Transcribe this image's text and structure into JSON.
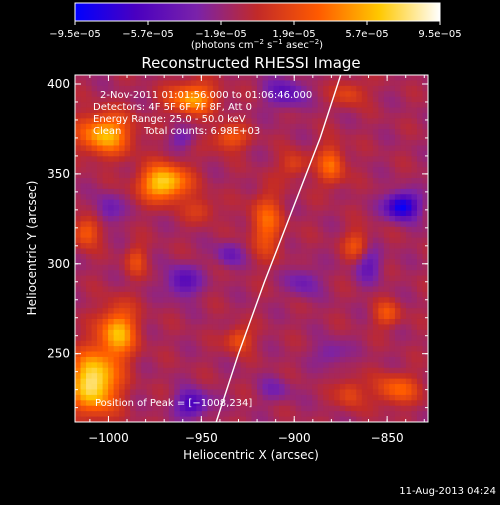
{
  "chart_data": {
    "type": "heatmap",
    "title": "Reconstructed RHESSI Image",
    "xlabel": "Heliocentric X (arcsec)",
    "ylabel": "Heliocentric Y (arcsec)",
    "xlim": [
      -1018,
      -828
    ],
    "ylim": [
      212,
      405
    ],
    "x_ticks": [
      -1000,
      -950,
      -900,
      -850
    ],
    "x_tick_labels": [
      "−1000",
      "−950",
      "−900",
      "−850"
    ],
    "y_ticks": [
      250,
      300,
      350,
      400
    ],
    "y_tick_labels": [
      "250",
      "300",
      "350",
      "400"
    ],
    "colorbar": {
      "range": [
        -9.5e-05,
        9.5e-05
      ],
      "ticks": [
        -9.5e-05,
        -5.7e-05,
        -1.9e-05,
        1.9e-05,
        5.7e-05,
        9.5e-05
      ],
      "tick_labels": [
        "−9.5e−05",
        "−5.7e−05",
        "−1.9e−05",
        "1.9e−05",
        "5.7e−05",
        "9.5e−05"
      ],
      "units_text": "(photons cm",
      "units_exp1": "−2",
      "units_mid": " s",
      "units_exp2": "−1",
      "units_mid2": " asec",
      "units_exp3": "−2",
      "units_end": ")",
      "stops": [
        "#0000ff",
        "#4a00c0",
        "#7a22aa",
        "#c22a28",
        "#ff5a00",
        "#ffc800",
        "#ffffff"
      ]
    },
    "annotations": {
      "time_range": "2-Nov-2011 01:01:56.000 to 01:06:46.000",
      "detectors": "Detectors: 4F 5F 6F 7F 8F, Att 0",
      "energy": "Energy Range: 25.0 - 50.0 keV",
      "method": "Clean",
      "counts": "Total counts: 6.98E+03",
      "peak": "Position of Peak = [−1008,234]"
    },
    "peak": [
      -1008,
      234
    ],
    "limb_curve": [
      [
        -942,
        212
      ],
      [
        -930,
        250
      ],
      [
        -916,
        290
      ],
      [
        -901,
        330
      ],
      [
        -886,
        370
      ],
      [
        -875,
        405
      ]
    ],
    "sources": [
      {
        "x": -1008,
        "y": 234,
        "sx": 9,
        "sy": 12,
        "a": 9.5e-05
      },
      {
        "x": -995,
        "y": 262,
        "sx": 7,
        "sy": 10,
        "a": 7e-05
      },
      {
        "x": -970,
        "y": 345,
        "sx": 9,
        "sy": 7,
        "a": 8.5e-05
      },
      {
        "x": -1002,
        "y": 372,
        "sx": 10,
        "sy": 8,
        "a": 7.2e-05
      },
      {
        "x": -955,
        "y": 392,
        "sx": 9,
        "sy": 6,
        "a": 6.5e-05
      },
      {
        "x": -1012,
        "y": 318,
        "sx": 5,
        "sy": 6,
        "a": 4.5e-05
      },
      {
        "x": -935,
        "y": 370,
        "sx": 7,
        "sy": 5,
        "a": 4e-05
      },
      {
        "x": -915,
        "y": 322,
        "sx": 6,
        "sy": 12,
        "a": 4.5e-05
      },
      {
        "x": -930,
        "y": 258,
        "sx": 5,
        "sy": 5,
        "a": 3.8e-05
      },
      {
        "x": -880,
        "y": 355,
        "sx": 5,
        "sy": 8,
        "a": 4.8e-05
      },
      {
        "x": -900,
        "y": 355,
        "sx": 5,
        "sy": 5,
        "a": 3e-05
      },
      {
        "x": -866,
        "y": 310,
        "sx": 5,
        "sy": 6,
        "a": 3.8e-05
      },
      {
        "x": -850,
        "y": 272,
        "sx": 5,
        "sy": 5,
        "a": 3.6e-05
      },
      {
        "x": -845,
        "y": 230,
        "sx": 8,
        "sy": 6,
        "a": 4.5e-05
      },
      {
        "x": -870,
        "y": 228,
        "sx": 5,
        "sy": 6,
        "a": 3.2e-05
      },
      {
        "x": -985,
        "y": 302,
        "sx": 4,
        "sy": 6,
        "a": 3e-05
      },
      {
        "x": -870,
        "y": 395,
        "sx": 6,
        "sy": 5,
        "a": 3e-05
      },
      {
        "x": -950,
        "y": 330,
        "sx": 6,
        "sy": 5,
        "a": 2.5e-05
      },
      {
        "x": -842,
        "y": 332,
        "sx": 6,
        "sy": 5,
        "a": -8.5e-05
      },
      {
        "x": -955,
        "y": 222,
        "sx": 6,
        "sy": 5,
        "a": -5.5e-05
      },
      {
        "x": -960,
        "y": 290,
        "sx": 6,
        "sy": 6,
        "a": -4.5e-05
      },
      {
        "x": -905,
        "y": 395,
        "sx": 7,
        "sy": 6,
        "a": -4e-05
      },
      {
        "x": -860,
        "y": 300,
        "sx": 5,
        "sy": 7,
        "a": -3.5e-05
      },
      {
        "x": -935,
        "y": 305,
        "sx": 5,
        "sy": 5,
        "a": -3e-05
      },
      {
        "x": -895,
        "y": 290,
        "sx": 6,
        "sy": 6,
        "a": -2.8e-05
      },
      {
        "x": -1000,
        "y": 330,
        "sx": 5,
        "sy": 6,
        "a": -3e-05
      },
      {
        "x": -960,
        "y": 370,
        "sx": 5,
        "sy": 4,
        "a": -2.5e-05
      },
      {
        "x": -880,
        "y": 250,
        "sx": 6,
        "sy": 5,
        "a": -2.5e-05
      },
      {
        "x": -910,
        "y": 230,
        "sx": 6,
        "sy": 5,
        "a": -2e-05
      }
    ],
    "offset": -1.2e-05
  },
  "footer": {
    "date": "11-Aug-2013 04:24"
  }
}
